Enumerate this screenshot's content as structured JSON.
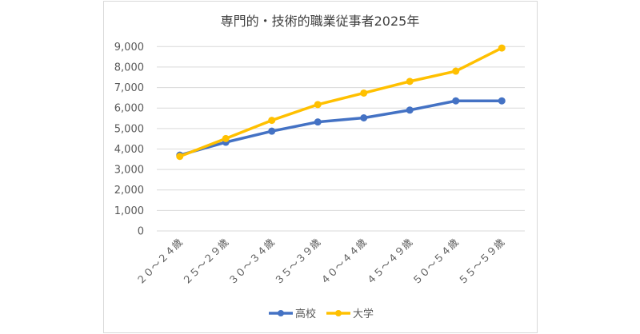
{
  "chart_data": {
    "type": "line",
    "title": "専門的・技術的職業従事者2025年",
    "xlabel": "",
    "ylabel": "",
    "categories": [
      "２０～２４歳",
      "２５～２９歳",
      "３０～３４歳",
      "３５～３９歳",
      "４０～４４歳",
      "４５～４９歳",
      "５０～５４歳",
      "５５～５９歳"
    ],
    "series": [
      {
        "name": "高校",
        "color": "#4472C4",
        "values": [
          3700,
          4330,
          4870,
          5320,
          5520,
          5900,
          6350,
          6350
        ]
      },
      {
        "name": "大学",
        "color": "#FFC000",
        "values": [
          3640,
          4510,
          5400,
          6170,
          6730,
          7300,
          7800,
          8930
        ]
      }
    ],
    "ylim": [
      0,
      9000
    ],
    "yticks": [
      0,
      1000,
      2000,
      3000,
      4000,
      5000,
      6000,
      7000,
      8000,
      9000
    ],
    "ytick_labels": [
      "0",
      "1,000",
      "2,000",
      "3,000",
      "4,000",
      "5,000",
      "6,000",
      "7,000",
      "8,000",
      "9,000"
    ],
    "grid": true,
    "legend_position": "bottom"
  }
}
